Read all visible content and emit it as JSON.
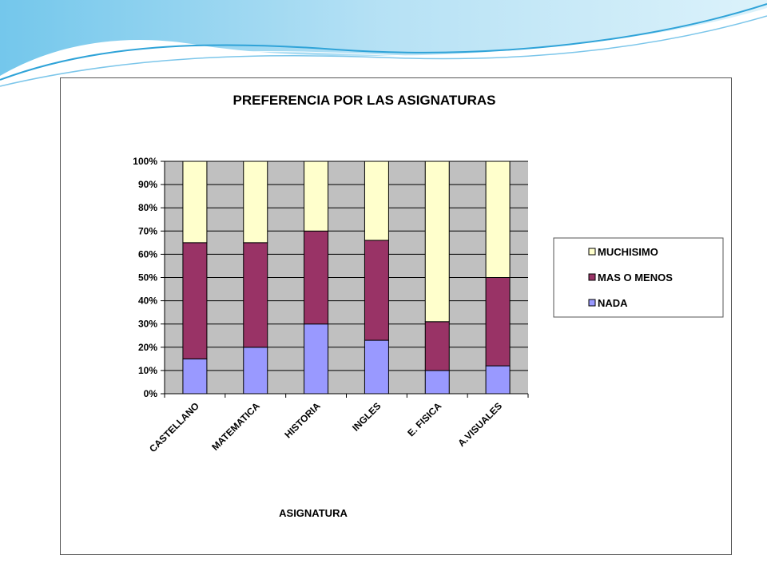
{
  "chart_data": {
    "type": "bar",
    "stacked": "percent",
    "title": "PREFERENCIA POR LAS ASIGNATURAS",
    "xlabel": "ASIGNATURA",
    "ylabel": "",
    "ylim": [
      0,
      100
    ],
    "yticks": [
      "0%",
      "10%",
      "20%",
      "30%",
      "40%",
      "50%",
      "60%",
      "70%",
      "80%",
      "90%",
      "100%"
    ],
    "categories": [
      "CASTELLANO",
      "MATEMATICA",
      "HISTORIA",
      "INGLES",
      "E. FISICA",
      "A.VISUALES"
    ],
    "series": [
      {
        "name": "NADA",
        "color": "#9999ff",
        "values": [
          15,
          20,
          30,
          23,
          10,
          12
        ]
      },
      {
        "name": "MAS O MENOS",
        "color": "#993366",
        "values": [
          50,
          45,
          40,
          43,
          21,
          38
        ]
      },
      {
        "name": "MUCHISIMO",
        "color": "#ffffcc",
        "values": [
          35,
          35,
          30,
          34,
          69,
          50
        ]
      }
    ],
    "legend_order": [
      "MUCHISIMO",
      "MAS O MENOS",
      "NADA"
    ],
    "legend_position": "right",
    "grid": true,
    "plot_background": "#c0c0c0"
  }
}
